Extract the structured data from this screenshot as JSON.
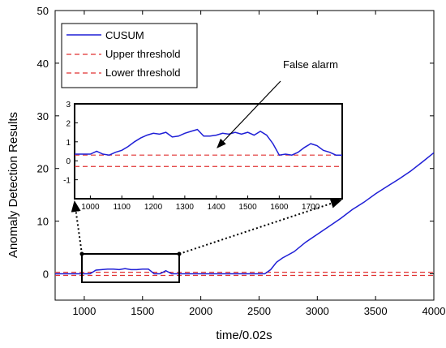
{
  "chart_data": {
    "type": "line",
    "title": "",
    "xlabel": "time/0.02s",
    "ylabel": "Anomaly Detection Results",
    "xlim": [
      750,
      4000
    ],
    "ylim": [
      -5,
      50
    ],
    "xticks": [
      1000,
      1500,
      2000,
      2500,
      3000,
      3500,
      4000
    ],
    "yticks": [
      0,
      10,
      20,
      30,
      40,
      50
    ],
    "grid": false,
    "legend_position": "top-left",
    "series": [
      {
        "name": "CUSUM",
        "color": "#1f1fd6",
        "style": "solid",
        "x": [
          750,
          1000,
          1050,
          1100,
          1150,
          1200,
          1250,
          1300,
          1350,
          1400,
          1450,
          1500,
          1550,
          1600,
          1650,
          1700,
          1750,
          1800,
          2000,
          2200,
          2400,
          2550,
          2600,
          2650,
          2700,
          2800,
          2900,
          3000,
          3100,
          3200,
          3300,
          3400,
          3500,
          3600,
          3700,
          3800,
          3900,
          4000
        ],
        "values": [
          0,
          0,
          0,
          0.7,
          0.8,
          0.9,
          0.9,
          0.8,
          1.0,
          0.8,
          0.8,
          0.9,
          0.9,
          0.0,
          0.0,
          0.6,
          0.0,
          0.0,
          0,
          0,
          0,
          0,
          0.8,
          2.2,
          3.0,
          4.2,
          6.0,
          7.5,
          9.0,
          10.5,
          12.2,
          13.6,
          15.2,
          16.6,
          18.0,
          19.5,
          21.2,
          23.0
        ]
      },
      {
        "name": "Upper threshold",
        "color": "#e03030",
        "style": "dashed",
        "value": 0.3
      },
      {
        "name": "Lower threshold",
        "color": "#e03030",
        "style": "dashed",
        "value": -0.3
      }
    ],
    "inset": {
      "xlim": [
        950,
        1800
      ],
      "ylim": [
        -2,
        3
      ],
      "xticks": [
        1000,
        1100,
        1200,
        1300,
        1400,
        1500,
        1600,
        1700
      ],
      "yticks": [
        -1,
        0,
        1,
        2,
        3
      ],
      "x": [
        950,
        1000,
        1020,
        1040,
        1060,
        1080,
        1100,
        1120,
        1140,
        1160,
        1180,
        1200,
        1220,
        1240,
        1260,
        1280,
        1300,
        1320,
        1340,
        1360,
        1380,
        1400,
        1420,
        1440,
        1460,
        1480,
        1500,
        1520,
        1540,
        1560,
        1580,
        1600,
        1620,
        1640,
        1660,
        1680,
        1700,
        1720,
        1740,
        1760,
        1780,
        1800
      ],
      "values": [
        0.35,
        0.35,
        0.5,
        0.35,
        0.3,
        0.45,
        0.55,
        0.75,
        1.0,
        1.2,
        1.35,
        1.45,
        1.4,
        1.5,
        1.25,
        1.3,
        1.45,
        1.55,
        1.65,
        1.3,
        1.3,
        1.35,
        1.45,
        1.4,
        1.5,
        1.4,
        1.5,
        1.35,
        1.55,
        1.35,
        0.9,
        0.3,
        0.35,
        0.3,
        0.45,
        0.7,
        0.9,
        0.8,
        0.55,
        0.45,
        0.3,
        0.3
      ]
    },
    "annotation": "False alarm"
  }
}
